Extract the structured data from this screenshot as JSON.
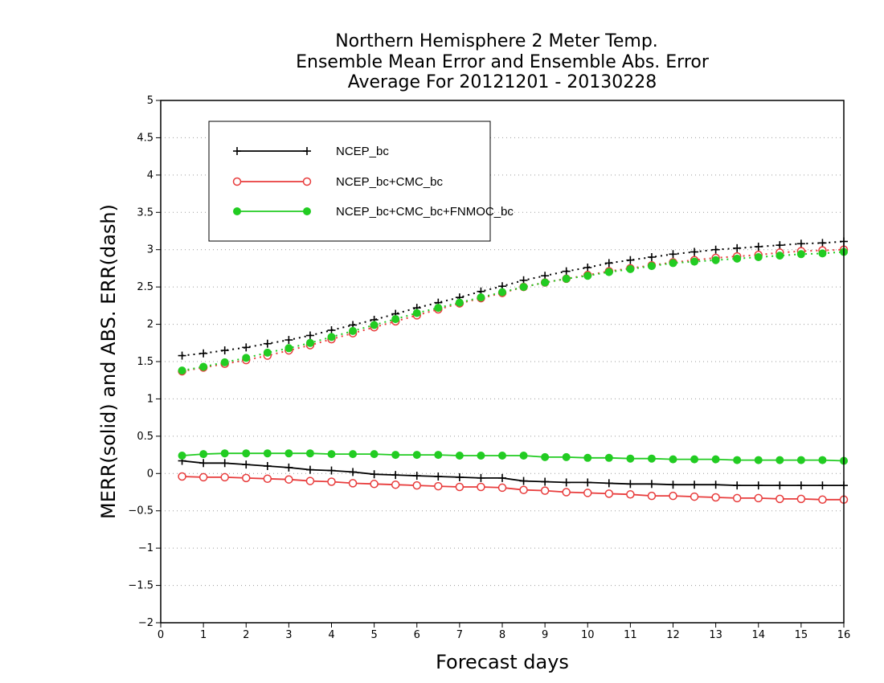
{
  "chart_data": {
    "type": "line",
    "title_lines": [
      "Northern Hemisphere 2 Meter Temp.",
      "Ensemble Mean Error and Ensemble Abs. Error",
      "Average For 20121201 - 20130228"
    ],
    "xlabel": "Forecast days",
    "ylabel": "MERR(solid) and ABS. ERR(dash)",
    "xlim": [
      0,
      16
    ],
    "ylim": [
      -2,
      5
    ],
    "xticks": [
      0,
      1,
      2,
      3,
      4,
      5,
      6,
      7,
      8,
      9,
      10,
      11,
      12,
      13,
      14,
      15,
      16
    ],
    "xtick_labels": [
      "0",
      "1",
      "2",
      "3",
      "4",
      "5",
      "6",
      "7",
      "8",
      "9",
      "10",
      "11",
      "12",
      "13",
      "14",
      "15",
      "16"
    ],
    "yticks": [
      -2,
      -1.5,
      -1,
      -0.5,
      0,
      0.5,
      1,
      1.5,
      2,
      2.5,
      3,
      3.5,
      4,
      4.5,
      5
    ],
    "ytick_labels": [
      "−2",
      "−1.5",
      "−1",
      "−0.5",
      "0",
      "0.5",
      "1",
      "1.5",
      "2",
      "2.5",
      "3",
      "3.5",
      "4",
      "4.5",
      "5"
    ],
    "grid": "horizontal dotted",
    "legend_position": "top-left",
    "x": [
      0.5,
      1,
      1.5,
      2,
      2.5,
      3,
      3.5,
      4,
      4.5,
      5,
      5.5,
      6,
      6.5,
      7,
      7.5,
      8,
      8.5,
      9,
      9.5,
      10,
      10.5,
      11,
      11.5,
      12,
      12.5,
      13,
      13.5,
      14,
      14.5,
      15,
      15.5,
      16
    ],
    "series": [
      {
        "name": "NCEP_bc",
        "color": "#000000",
        "marker": "plus",
        "merr": [
          0.17,
          0.14,
          0.14,
          0.12,
          0.1,
          0.08,
          0.05,
          0.04,
          0.02,
          -0.01,
          -0.02,
          -0.03,
          -0.04,
          -0.05,
          -0.06,
          -0.06,
          -0.1,
          -0.11,
          -0.12,
          -0.12,
          -0.13,
          -0.14,
          -0.14,
          -0.15,
          -0.15,
          -0.15,
          -0.16,
          -0.16,
          -0.16,
          -0.16,
          -0.16,
          -0.16
        ],
        "abs_err": [
          1.58,
          1.61,
          1.65,
          1.69,
          1.74,
          1.79,
          1.85,
          1.92,
          1.99,
          2.06,
          2.14,
          2.22,
          2.29,
          2.36,
          2.44,
          2.51,
          2.59,
          2.65,
          2.71,
          2.76,
          2.82,
          2.86,
          2.9,
          2.94,
          2.97,
          3.0,
          3.02,
          3.04,
          3.06,
          3.08,
          3.09,
          3.11
        ]
      },
      {
        "name": "NCEP_bc+CMC_bc",
        "color": "#e83c3c",
        "marker": "open-circle",
        "merr": [
          -0.04,
          -0.05,
          -0.05,
          -0.06,
          -0.07,
          -0.08,
          -0.1,
          -0.11,
          -0.13,
          -0.14,
          -0.15,
          -0.16,
          -0.17,
          -0.18,
          -0.18,
          -0.19,
          -0.22,
          -0.23,
          -0.25,
          -0.26,
          -0.27,
          -0.28,
          -0.3,
          -0.3,
          -0.31,
          -0.32,
          -0.33,
          -0.33,
          -0.34,
          -0.34,
          -0.35,
          -0.35
        ],
        "abs_err": [
          1.37,
          1.42,
          1.47,
          1.52,
          1.58,
          1.65,
          1.72,
          1.8,
          1.88,
          1.96,
          2.04,
          2.12,
          2.2,
          2.28,
          2.35,
          2.42,
          2.5,
          2.56,
          2.61,
          2.66,
          2.71,
          2.75,
          2.79,
          2.83,
          2.86,
          2.89,
          2.91,
          2.93,
          2.96,
          2.98,
          2.99,
          3.0
        ]
      },
      {
        "name": "NCEP_bc+CMC_bc+FNMOC_bc",
        "color": "#22cc22",
        "marker": "filled-circle",
        "merr": [
          0.24,
          0.26,
          0.27,
          0.27,
          0.27,
          0.27,
          0.27,
          0.26,
          0.26,
          0.26,
          0.25,
          0.25,
          0.25,
          0.24,
          0.24,
          0.24,
          0.24,
          0.22,
          0.22,
          0.21,
          0.21,
          0.2,
          0.2,
          0.19,
          0.19,
          0.19,
          0.18,
          0.18,
          0.18,
          0.18,
          0.18,
          0.17
        ],
        "abs_err": [
          1.38,
          1.43,
          1.49,
          1.55,
          1.62,
          1.68,
          1.75,
          1.83,
          1.91,
          1.99,
          2.07,
          2.15,
          2.22,
          2.29,
          2.36,
          2.43,
          2.5,
          2.56,
          2.61,
          2.65,
          2.7,
          2.74,
          2.78,
          2.82,
          2.84,
          2.86,
          2.88,
          2.9,
          2.92,
          2.94,
          2.95,
          2.97
        ]
      }
    ]
  }
}
